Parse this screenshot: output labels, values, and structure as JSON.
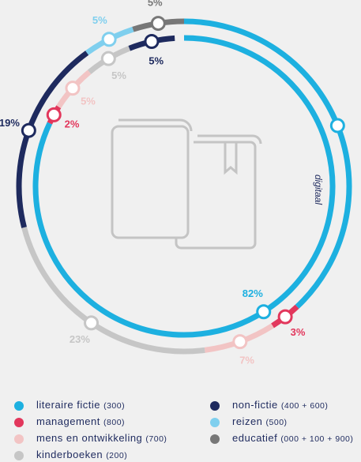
{
  "chart_data": {
    "type": "ring",
    "inner_label": "digitaal",
    "series": [
      {
        "name": "literaire fictie",
        "code": "(300)",
        "color": "#1db0e0",
        "values": [
          38,
          82
        ],
        "value_labels": [
          null,
          "82%"
        ]
      },
      {
        "name": "management",
        "code": "(800)",
        "color": "#e2375c",
        "values": [
          3,
          2
        ],
        "value_labels": [
          "3%",
          "2%"
        ]
      },
      {
        "name": "mens en ontwikkeling",
        "code": "(700)",
        "color": "#f2c4c4",
        "values": [
          7,
          5
        ],
        "value_labels": [
          "7%",
          "5%"
        ]
      },
      {
        "name": "kinderboeken",
        "code": "(200)",
        "color": "#c6c6c6",
        "values": [
          23,
          5
        ],
        "value_labels": [
          "23%",
          "5%"
        ]
      },
      {
        "name": "non-fictie",
        "code": "(400 + 600)",
        "color": "#1e2a5e",
        "values": [
          19,
          5
        ],
        "value_labels": [
          "19%",
          "5%"
        ]
      },
      {
        "name": "reizen",
        "code": "(500)",
        "color": "#7fcfee",
        "values": [
          5,
          null
        ],
        "value_labels": [
          "5%",
          null
        ]
      },
      {
        "name": "educatief",
        "code": "(000 + 100 + 900)",
        "color": "#777777",
        "values": [
          5,
          null
        ],
        "value_labels": [
          "5%",
          null
        ]
      }
    ]
  }
}
